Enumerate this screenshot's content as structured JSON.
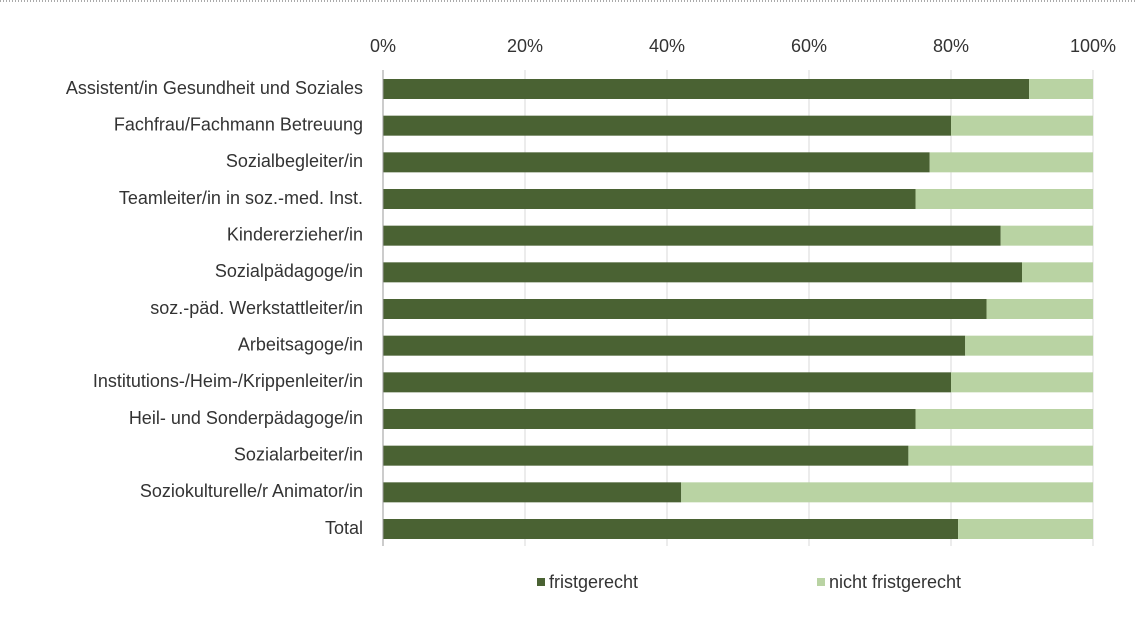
{
  "chart_data": {
    "type": "stacked_bar_horizontal",
    "categories": [
      "Assistent/in Gesundheit und Soziales",
      "Fachfrau/Fachmann Betreuung",
      "Sozialbegleiter/in",
      "Teamleiter/in in soz.-med. Inst.",
      "Kindererzieher/in",
      "Sozialpädagoge/in",
      "soz.-päd. Werkstattleiter/in",
      "Arbeitsagoge/in",
      "Institutions-/Heim-/Krippenleiter/in",
      "Heil- und Sonderpädagoge/in",
      "Sozialarbeiter/in",
      "Soziokulturelle/r Animator/in",
      "Total"
    ],
    "series": [
      {
        "name": "fristgerecht",
        "color": "#4a6233",
        "values": [
          91,
          80,
          77,
          75,
          87,
          90,
          85,
          82,
          80,
          75,
          74,
          42,
          81
        ]
      },
      {
        "name": "nicht fristgerecht",
        "color": "#b9d3a3",
        "values": [
          9,
          20,
          23,
          25,
          13,
          10,
          15,
          18,
          20,
          25,
          26,
          58,
          19
        ]
      }
    ],
    "xlim": [
      0,
      100
    ],
    "xticks": [
      {
        "value": 0,
        "label": "0%"
      },
      {
        "value": 20,
        "label": "20%"
      },
      {
        "value": 40,
        "label": "40%"
      },
      {
        "value": 60,
        "label": "60%"
      },
      {
        "value": 80,
        "label": "80%"
      },
      {
        "value": 100,
        "label": "100%"
      }
    ],
    "grid": true,
    "legend": "bottom"
  }
}
